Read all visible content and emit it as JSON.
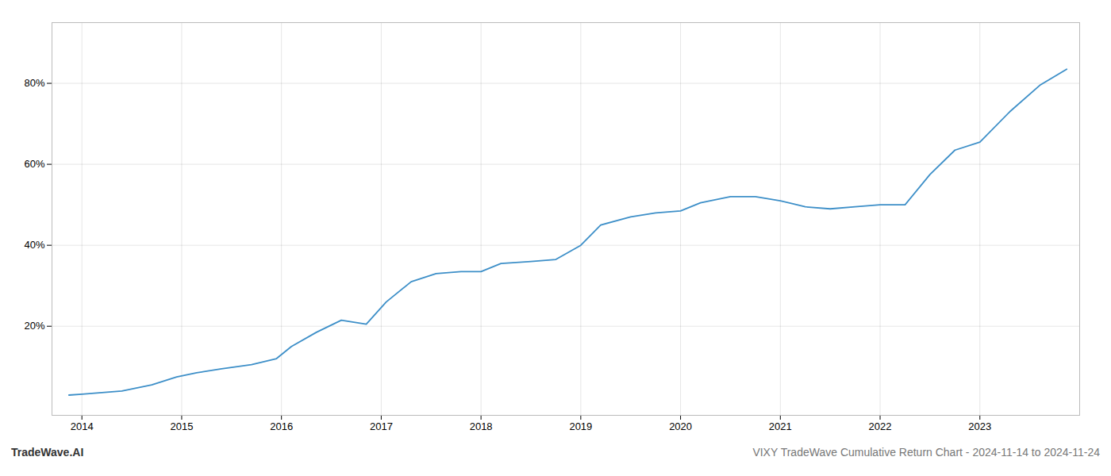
{
  "chart_data": {
    "type": "line",
    "annotations": [
      "TradeWave.AI",
      "VIXY TradeWave Cumulative Return Chart - 2024-11-14 to 2024-11-24"
    ],
    "x": [
      2013.87,
      2014.0,
      2014.15,
      2014.4,
      2014.7,
      2014.95,
      2015.15,
      2015.4,
      2015.7,
      2015.95,
      2016.1,
      2016.35,
      2016.6,
      2016.85,
      2017.05,
      2017.3,
      2017.55,
      2017.8,
      2018.0,
      2018.2,
      2018.5,
      2018.75,
      2019.0,
      2019.2,
      2019.5,
      2019.75,
      2020.0,
      2020.2,
      2020.5,
      2020.75,
      2021.0,
      2021.25,
      2021.5,
      2021.75,
      2022.0,
      2022.25,
      2022.5,
      2022.75,
      2023.0,
      2023.3,
      2023.6,
      2023.87
    ],
    "values": [
      3.0,
      3.2,
      3.5,
      4.0,
      5.5,
      7.5,
      8.5,
      9.5,
      10.5,
      12.0,
      15.0,
      18.5,
      21.5,
      20.5,
      26.0,
      31.0,
      33.0,
      33.5,
      33.5,
      35.5,
      36.0,
      36.5,
      40.0,
      45.0,
      47.0,
      48.0,
      48.5,
      50.5,
      52.0,
      52.0,
      51.0,
      49.5,
      49.0,
      49.5,
      50.0,
      50.0,
      57.5,
      63.5,
      65.5,
      73.0,
      79.5,
      83.5
    ],
    "color": "#3d8fc8",
    "xlim": [
      2013.7,
      2024.0
    ],
    "xticks": [
      2014,
      2015,
      2016,
      2017,
      2018,
      2019,
      2020,
      2021,
      2022,
      2023
    ],
    "ylim": [
      -2,
      95
    ],
    "yticks": [
      {
        "value": 20,
        "label": "20%"
      },
      {
        "value": 40,
        "label": "40%"
      },
      {
        "value": 60,
        "label": "60%"
      },
      {
        "value": 80,
        "label": "80%"
      }
    ],
    "grid": true
  }
}
